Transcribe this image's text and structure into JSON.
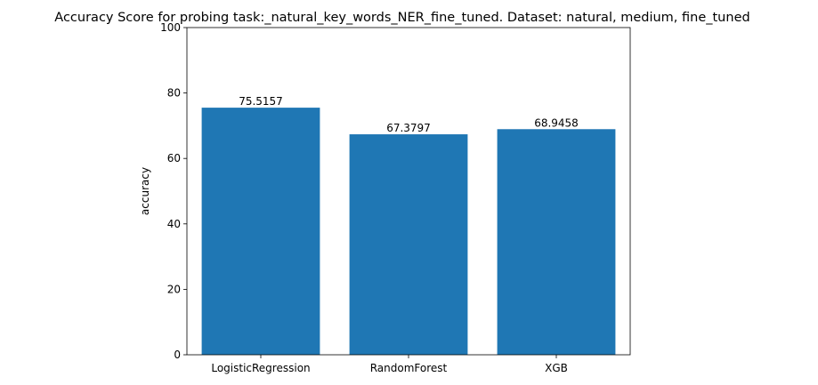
{
  "chart_data": {
    "type": "bar",
    "title": "Accuracy Score for probing task:_natural_key_words_NER_fine_tuned. Dataset: natural, medium, fine_tuned",
    "xlabel": "",
    "ylabel": "accuracy",
    "categories": [
      "LogisticRegression",
      "RandomForest",
      "XGB"
    ],
    "values": [
      75.5157,
      67.3797,
      68.9458
    ],
    "data_labels": [
      "75.5157",
      "67.3797",
      "68.9458"
    ],
    "ylim": [
      0,
      100
    ],
    "yticks": [
      0,
      20,
      40,
      60,
      80,
      100
    ],
    "ytick_labels": [
      "0",
      "20",
      "40",
      "60",
      "80",
      "100"
    ],
    "bar_color": "#1f77b4",
    "grid": false,
    "legend": "none"
  }
}
